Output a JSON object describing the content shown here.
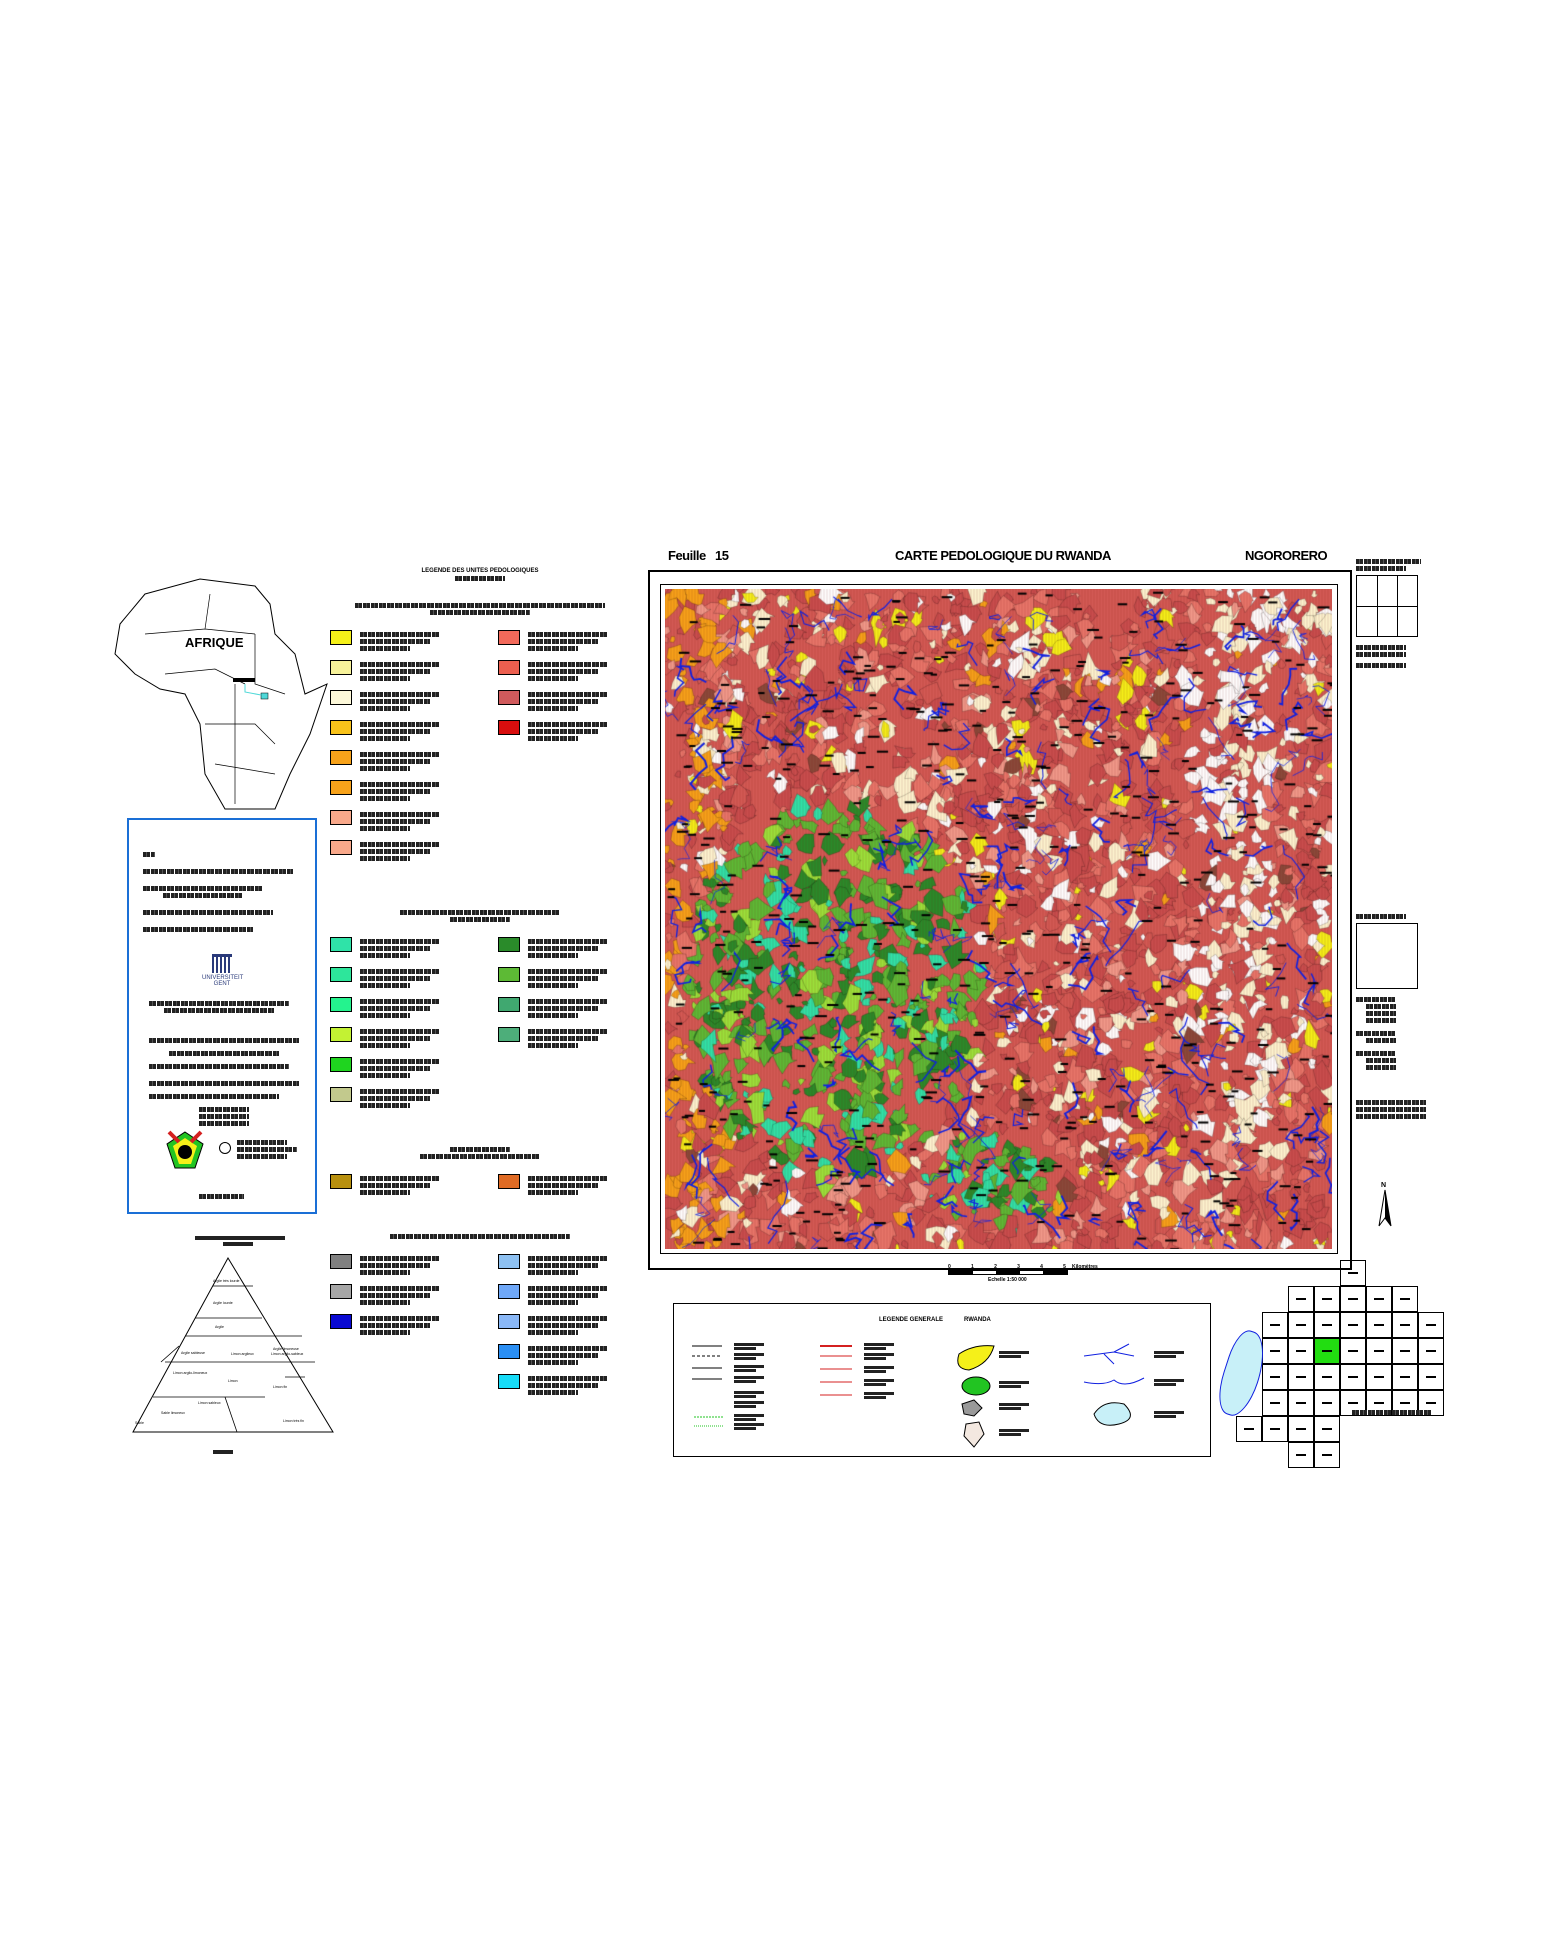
{
  "header": {
    "sheet_label": "Feuille",
    "sheet_number": "15",
    "title": "CARTE PEDOLOGIQUE DU RWANDA",
    "sheet_name": "NGORORERO"
  },
  "inset_africa": {
    "label": "AFRIQUE",
    "highlight_color": "#4fd8d8"
  },
  "credits": {
    "university_logo_text": "UNIVERSITEIT GENT",
    "border_color": "#1a6fd6"
  },
  "soil_legend": {
    "title": "LEGENDE DES UNITES PEDOLOGIQUES",
    "group1_swatches_left": [
      "#f5f019",
      "#f7f29a",
      "#fdf8d9",
      "#f8c21a",
      "#f7a21a",
      "#f7a21a",
      "#f8a88a",
      "#f8a88a"
    ],
    "group1_swatches_right": [
      "#f2695a",
      "#ec5f4f",
      "#d05a5c",
      "#d80e0e"
    ],
    "group2_swatches_left": [
      "#2fe3a8",
      "#2de69b",
      "#24f38e",
      "#c3f233",
      "#1fd41f",
      "#c2c98d"
    ],
    "group2_swatches_right": [
      "#2a8b2a",
      "#5dba35",
      "#40a870",
      "#4dae7a"
    ],
    "group3_swatches": [
      "#b8900e",
      "#e06b24"
    ],
    "group4_swatches_left": [
      "#808080",
      "#a6a6a6",
      "#0a0ad2"
    ],
    "group4_swatches_right": [
      "#8ec1f2",
      "#6fa8f8",
      "#8ab8f7",
      "#2b8ff4",
      "#17dcf8"
    ]
  },
  "texture_triangle": {
    "classes": [
      "Argile très lourde",
      "Argile lourde",
      "Argile",
      "Argile limoneuse",
      "Argile sableuse",
      "Limon argileux",
      "Limon argilo-sableux",
      "Limon argilo-limoneux",
      "Limon",
      "Limon fin",
      "Limon sableux",
      "Sable limoneux",
      "Sable",
      "Limon très fin"
    ]
  },
  "map": {
    "base_color": "#d45a55",
    "palette": [
      "#d45a55",
      "#c94e4e",
      "#e8766a",
      "#f19a8a",
      "#fdf5d0",
      "#ffffff",
      "#f7a21a",
      "#f5f019",
      "#2a8b2a",
      "#5dba35",
      "#2fe3a8",
      "#9be23a",
      "#8a4a3a"
    ],
    "river_color": "#1020e0"
  },
  "scale_bar": {
    "ticks": [
      "0",
      "1",
      "2",
      "3",
      "4",
      "5"
    ],
    "unit": "Kilomètres",
    "caption": "Echelle 1:50 000"
  },
  "general_legend": {
    "title": "LEGENDE GENERALE",
    "subtitle": "RWANDA",
    "road_color": "#d42020",
    "lake_color": "#c8f0f8",
    "marsh_color": "#f5f019",
    "forest_color": "#22c422"
  },
  "index_map": {
    "north_label": "N",
    "current_sheet_color": "#22dd11",
    "lake_color": "#c8f0f8"
  }
}
